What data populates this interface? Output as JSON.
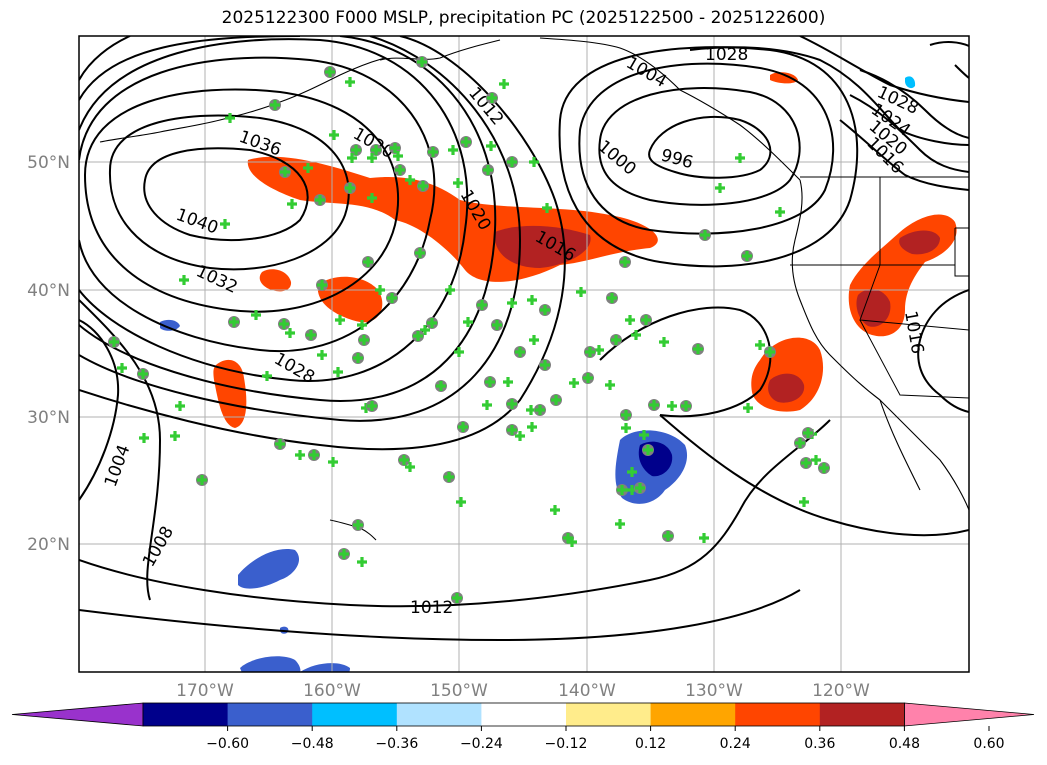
{
  "title": "2025122300 F000 MSLP, precipitation PC (2025122500 - 2025122600)",
  "map": {
    "lon_labels": [
      "170°W",
      "160°W",
      "150°W",
      "140°W",
      "130°W",
      "120°W"
    ],
    "lat_labels": [
      "50°N",
      "40°N",
      "30°N",
      "20°N"
    ],
    "isobar_labels": [
      "1028",
      "1012",
      "1004",
      "1020",
      "1036",
      "1040",
      "1032",
      "1028",
      "1020",
      "1016",
      "1000",
      "996",
      "1028",
      "1024",
      "1020",
      "1016",
      "1016",
      "1004",
      "1008",
      "1012"
    ],
    "colors": {
      "isobar": "#000000",
      "coast": "#000000",
      "grid": "#b0b0b0",
      "marker": "#33cc33",
      "circle": "#808080"
    }
  },
  "colorbar": {
    "ticks": [
      "−0.60",
      "−0.48",
      "−0.36",
      "−0.24",
      "−0.12",
      "0.12",
      "0.24",
      "0.36",
      "0.48",
      "0.60"
    ],
    "colors": [
      "#9932cc",
      "#00008b",
      "#3a5fcd",
      "#00bfff",
      "#b0e2ff",
      "#ffffff",
      "#ffec8b",
      "#ffa500",
      "#ff4500",
      "#b22222",
      "#ff82ab"
    ]
  }
}
